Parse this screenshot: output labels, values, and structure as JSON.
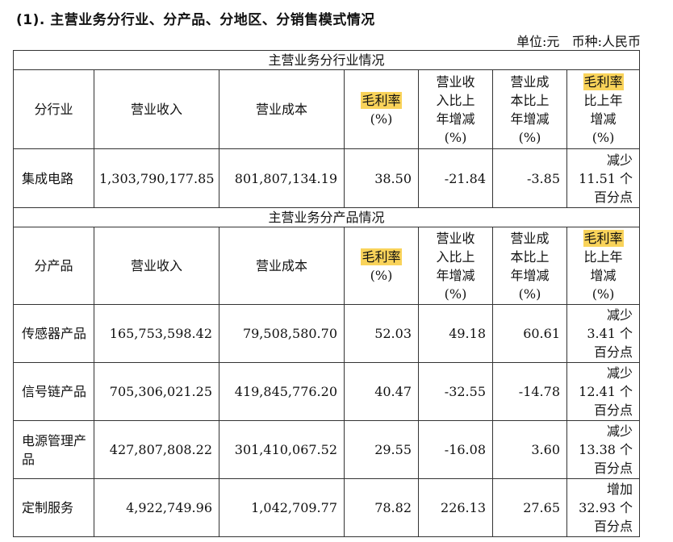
{
  "heading": "(1).  主营业务分行业、分产品、分地区、分销售模式情况",
  "unit_line": "单位:元   币种:人民币",
  "headers": {
    "col_revenue": "营业收入",
    "col_cost": "营业成本",
    "col_margin_hl": "毛利率",
    "col_margin_pct": "(%)",
    "col_rev_change": [
      "营业收",
      "入比上",
      "年增减",
      "(%)"
    ],
    "col_cost_change": [
      "营业成",
      "本比上",
      "年增减",
      "(%)"
    ],
    "col_margin_change_hl": "毛利率",
    "col_margin_change": [
      "比上年",
      "增减",
      "(%)"
    ]
  },
  "section_industry": {
    "title": "主营业务分行业情况",
    "first_col": "分行业",
    "rows": [
      {
        "name": "集成电路",
        "revenue": "1,303,790,177.85",
        "cost": "801,807,134.19",
        "margin": "38.50",
        "rev_change": "-21.84",
        "cost_change": "-3.85",
        "margin_change": [
          "减少",
          "11.51 个",
          "百分点"
        ]
      }
    ]
  },
  "section_product": {
    "title": "主营业务分产品情况",
    "first_col": "分产品",
    "rows": [
      {
        "name": "传感器产品",
        "revenue": "165,753,598.42",
        "cost": "79,508,580.70",
        "margin": "52.03",
        "rev_change": "49.18",
        "cost_change": "60.61",
        "margin_change": [
          "减少",
          "3.41 个",
          "百分点"
        ]
      },
      {
        "name": "信号链产品",
        "revenue": "705,306,021.25",
        "cost": "419,845,776.20",
        "margin": "40.47",
        "rev_change": "-32.55",
        "cost_change": "-14.78",
        "margin_change": [
          "减少",
          "12.41 个",
          "百分点"
        ]
      },
      {
        "name": "电源管理产品",
        "revenue": "427,807,808.22",
        "cost": "301,410,067.52",
        "margin": "29.55",
        "rev_change": "-16.08",
        "cost_change": "3.60",
        "margin_change": [
          "减少",
          "13.38 个",
          "百分点"
        ]
      },
      {
        "name": "定制服务",
        "revenue": "4,922,749.96",
        "cost": "1,042,709.77",
        "margin": "78.82",
        "rev_change": "226.13",
        "cost_change": "27.65",
        "margin_change": [
          "增加",
          "32.93 个",
          "百分点"
        ]
      }
    ]
  },
  "colors": {
    "highlight": "#f9d35a",
    "border": "#333333"
  }
}
